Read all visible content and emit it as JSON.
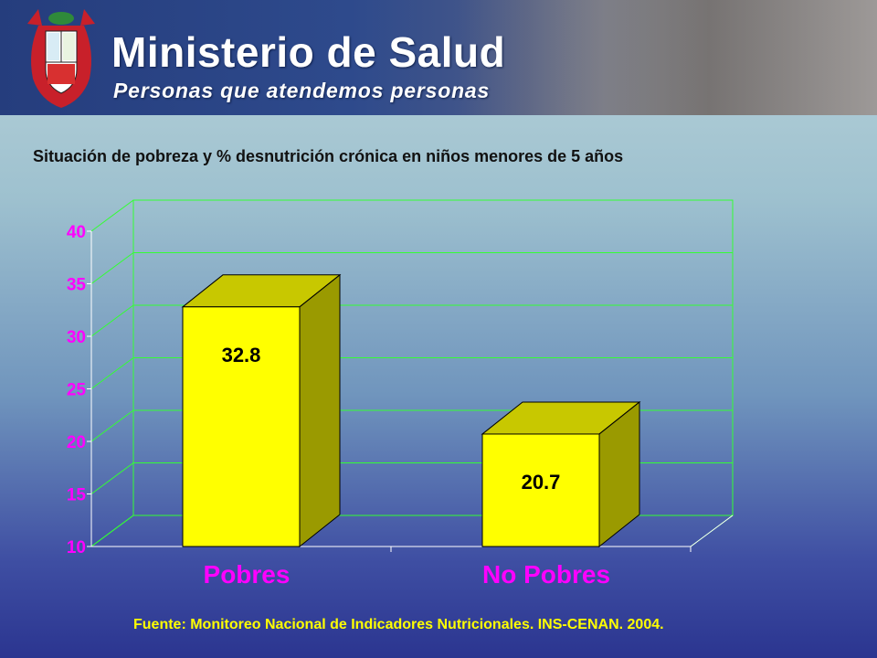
{
  "header": {
    "title": "Ministerio de Salud",
    "subtitle": "Personas que atendemos personas"
  },
  "colors": {
    "bar_front": "#ffff00",
    "bar_top": "#c8c800",
    "bar_side": "#9a9a00",
    "grid": "#33ff33",
    "tick_labels": "#ff00ff",
    "category_labels": "#ff00ff",
    "source_text": "#ffff00"
  },
  "chart_data": {
    "type": "bar",
    "title": "Situación de pobreza y  % desnutrición crónica en niños menores de 5 años",
    "categories": [
      "Pobres",
      "No Pobres"
    ],
    "values": [
      32.8,
      20.7
    ],
    "value_labels": [
      "32.8",
      "20.7"
    ],
    "ylim": [
      10,
      40
    ],
    "yticks": [
      "10",
      "15",
      "20",
      "25",
      "30",
      "35",
      "40"
    ],
    "grid": true,
    "three_d": true
  },
  "source": "Fuente: Monitoreo Nacional de Indicadores Nutricionales. INS-CENAN. 2004."
}
